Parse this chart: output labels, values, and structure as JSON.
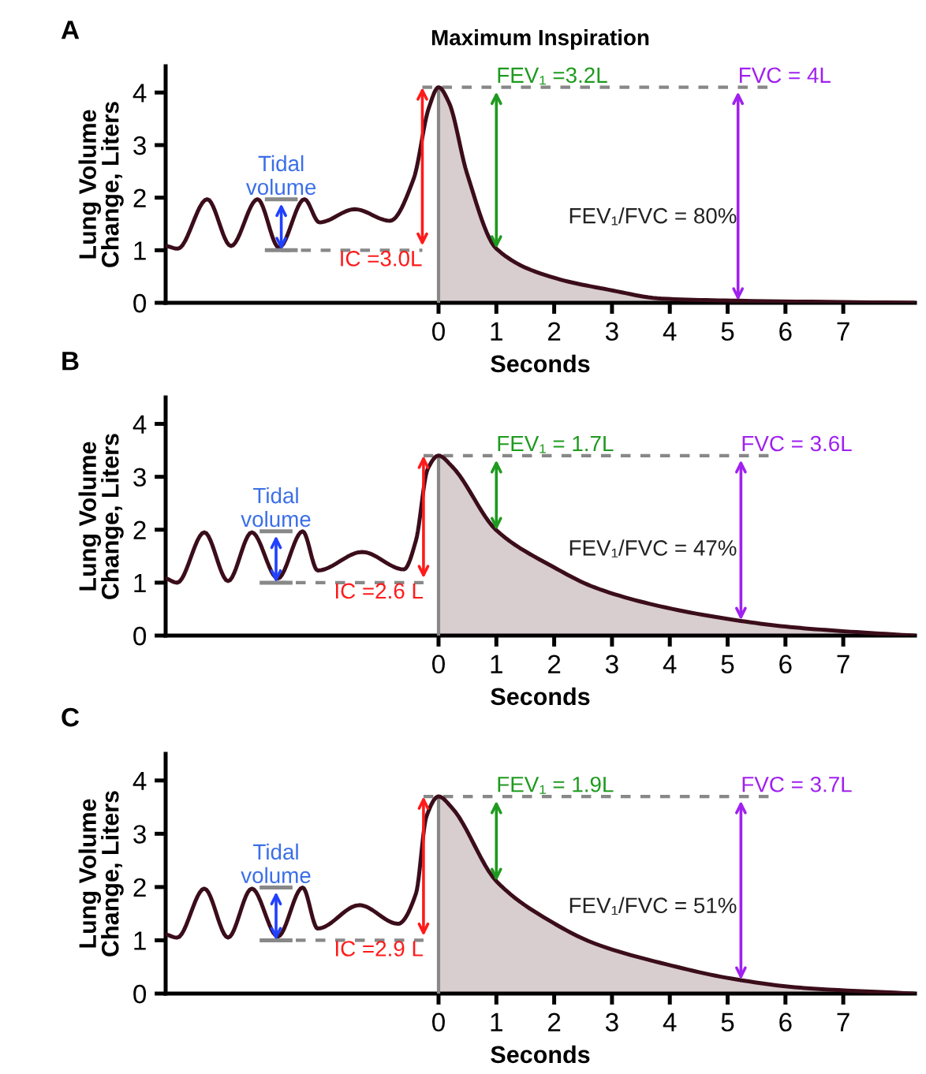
{
  "chart_data": [
    {
      "type": "line",
      "title": "A",
      "subtitle": "Maximum Inspiration",
      "xlabel": "Seconds",
      "ylabel": "Lung Volume\nChange, Liters",
      "xlim": [
        -4.72,
        8.24
      ],
      "xticks": [
        0,
        1,
        2,
        3,
        4,
        5,
        6,
        7
      ],
      "ylim": [
        0,
        4.5
      ],
      "yticks": [
        0,
        1,
        2,
        3,
        4
      ],
      "series": [
        {
          "color": "#3b0d1a",
          "x": [
            -4.7,
            -4.51,
            -4.0,
            -3.59,
            -3.13,
            -2.76,
            -2.32,
            -2.06,
            -1.45,
            -0.84,
            -0.43,
            -0.17,
            0,
            0.18,
            0.49,
            1.0,
            2.02,
            2.94,
            3.86,
            5.18,
            8.24
          ],
          "values": [
            1.08,
            1.03,
            1.97,
            1.08,
            1.97,
            1.05,
            1.97,
            1.53,
            1.78,
            1.56,
            2.36,
            3.7,
            4.1,
            3.81,
            2.47,
            1.03,
            0.47,
            0.25,
            0.08,
            0.04,
            0
          ]
        },
        {
          "type": "area",
          "color": "#d8cdcf",
          "x": [
            0,
            0.18,
            0.49,
            1.0,
            2.02,
            2.94,
            3.86,
            5.18,
            8.24
          ],
          "values": [
            4.1,
            3.81,
            2.47,
            1.03,
            0.47,
            0.25,
            0.08,
            0.04,
            0
          ]
        }
      ],
      "ref_lines": [
        {
          "axis": "y",
          "value": 4.1,
          "color": "#888888",
          "line_style": "dashed"
        },
        {
          "axis": "y",
          "value": 1,
          "color": "#888888",
          "line_style": "dashed"
        }
      ],
      "annotations": [
        {
          "text": "Tidal\nvolume",
          "x": -2.72,
          "y": 1.0
        },
        {
          "text": "IC =3.0L",
          "x": -0.28,
          "y": 1.0
        },
        {
          "text": "FEV₁ =3.2L",
          "x": 1.0,
          "y": 1.03
        },
        {
          "text": "FVC = 4L",
          "x": 5.18,
          "y": 0.04
        },
        "FEV₁/FVC = 80%"
      ]
    },
    {
      "type": "line",
      "title": "B",
      "xlabel": "Seconds",
      "ylabel": "Lung Volume\nChange, Liters",
      "xlim": [
        -4.72,
        8.24
      ],
      "xticks": [
        0,
        1,
        2,
        3,
        4,
        5,
        6,
        7
      ],
      "ylim": [
        0,
        4.5
      ],
      "yticks": [
        0,
        1,
        2,
        3,
        4
      ],
      "series": [
        {
          "color": "#3b0d1a",
          "x": [
            -4.71,
            -4.52,
            -4.05,
            -3.64,
            -3.23,
            -2.78,
            -2.35,
            -2.09,
            -1.32,
            -0.6,
            -0.39,
            -0.19,
            0,
            0.23,
            1.0,
            1.98,
            2.7,
            3.73,
            4.97,
            6.0,
            7.03,
            8.22
          ],
          "values": [
            1.08,
            1.0,
            1.95,
            1.03,
            1.95,
            1.08,
            1.97,
            1.23,
            1.58,
            1.25,
            1.8,
            3.14,
            3.4,
            3.2,
            1.99,
            1.3,
            0.91,
            0.58,
            0.32,
            0.17,
            0.08,
            0
          ]
        },
        {
          "type": "area",
          "color": "#d8cdcf",
          "x": [
            0,
            0.23,
            1.0,
            1.98,
            2.7,
            3.73,
            4.97,
            6.0,
            7.03,
            8.22
          ],
          "values": [
            3.4,
            3.2,
            1.99,
            1.3,
            0.91,
            0.58,
            0.32,
            0.17,
            0.08,
            0
          ]
        }
      ],
      "ref_lines": [
        {
          "axis": "y",
          "value": 3.4,
          "color": "#888888",
          "line_style": "dashed"
        },
        {
          "axis": "y",
          "value": 1,
          "color": "#888888",
          "line_style": "dashed"
        }
      ],
      "annotations": [
        {
          "text": "Tidal\nvolume",
          "x": -2.81,
          "y": 1.0
        },
        {
          "text": "IC =2.6 L",
          "x": -0.26,
          "y": 1.0
        },
        {
          "text": "FEV₁ = 1.7L",
          "x": 1.0,
          "y": 1.99
        },
        {
          "text": "FVC = 3.6L",
          "x": 5.23,
          "y": 0.29
        },
        "FEV₁/FVC = 47%"
      ]
    },
    {
      "type": "line",
      "title": "C",
      "xlabel": "Seconds",
      "ylabel": "Lung Volume\nChange, Liters",
      "xlim": [
        -4.72,
        8.24
      ],
      "xticks": [
        0,
        1,
        2,
        3,
        4,
        5,
        6,
        7
      ],
      "ylim": [
        0,
        4.5
      ],
      "yticks": [
        0,
        1,
        2,
        3,
        4
      ],
      "series": [
        {
          "color": "#3b0d1a",
          "x": [
            -4.71,
            -4.52,
            -4.05,
            -3.64,
            -3.23,
            -2.78,
            -2.35,
            -2.09,
            -1.37,
            -0.7,
            -0.39,
            -0.21,
            0,
            0.23,
            1.0,
            1.98,
            2.7,
            3.94,
            5.07,
            6.26,
            8.22
          ],
          "values": [
            1.11,
            1.05,
            1.97,
            1.05,
            1.97,
            1.07,
            1.99,
            1.22,
            1.66,
            1.31,
            1.88,
            3.32,
            3.7,
            3.49,
            2.11,
            1.33,
            0.94,
            0.55,
            0.28,
            0.11,
            0
          ]
        },
        {
          "type": "area",
          "color": "#d8cdcf",
          "x": [
            0,
            0.23,
            1.0,
            1.98,
            2.7,
            3.94,
            5.07,
            6.26,
            8.22
          ],
          "values": [
            3.7,
            3.49,
            2.11,
            1.33,
            0.94,
            0.55,
            0.28,
            0.11,
            0
          ]
        }
      ],
      "ref_lines": [
        {
          "axis": "y",
          "value": 3.7,
          "color": "#888888",
          "line_style": "dashed"
        },
        {
          "axis": "y",
          "value": 1,
          "color": "#888888",
          "line_style": "dashed"
        }
      ],
      "annotations": [
        {
          "text": "Tidal\nvolume",
          "x": -2.81,
          "y": 1.0
        },
        {
          "text": "IC =2.9 L",
          "x": -0.26,
          "y": 1.0
        },
        {
          "text": "FEV₁ = 1.9L",
          "x": 1.0,
          "y": 2.11
        },
        {
          "text": "FVC = 3.7L",
          "x": 5.23,
          "y": 0.26
        },
        "FEV₁/FVC = 51%"
      ]
    }
  ]
}
